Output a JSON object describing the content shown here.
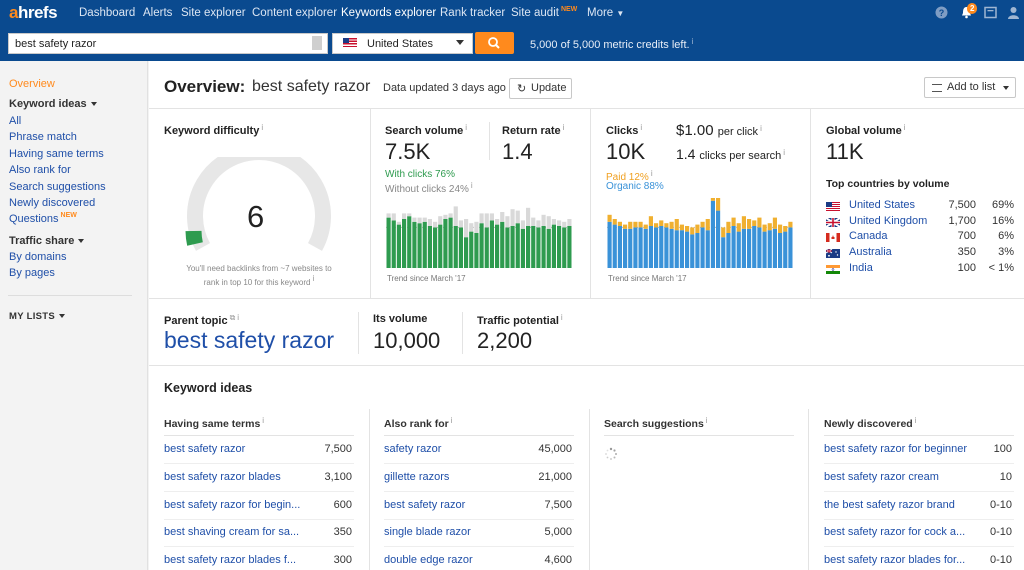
{
  "nav": {
    "logo_a": "a",
    "logo_rest": "hrefs",
    "items": [
      "Dashboard",
      "Alerts",
      "Site explorer",
      "Content explorer",
      "Keywords explorer",
      "Rank tracker",
      "Site audit",
      "More"
    ],
    "new_badge": "NEW",
    "notif_count": "2",
    "icons": [
      "help-icon",
      "bell-icon",
      "chat-icon",
      "user-icon"
    ]
  },
  "search": {
    "query": "best safety razor",
    "country": "United States",
    "credits": "5,000 of 5,000 metric credits left."
  },
  "sidebar": {
    "overview": "Overview",
    "keyword_ideas": "Keyword ideas",
    "ideas_links": [
      "All",
      "Phrase match",
      "Having same terms",
      "Also rank for",
      "Search suggestions",
      "Newly discovered",
      "Questions"
    ],
    "new_label": "NEW",
    "traffic_share": "Traffic share",
    "traffic_links": [
      "By domains",
      "By pages"
    ],
    "my_lists": "MY LISTS"
  },
  "overview": {
    "title": "Overview:",
    "keyword": "best safety razor",
    "updated": "Data updated 3 days ago",
    "update_btn": "Update",
    "add_to_list": "Add to list"
  },
  "kd": {
    "label": "Keyword difficulty",
    "value": "6",
    "note": "You'll need backlinks from ~7 websites to rank in top 10 for this keyword",
    "colors": {
      "fill": "#2e9b4f",
      "track": "#e7e7e7"
    }
  },
  "volume": {
    "label": "Search volume",
    "value": "7.5K",
    "with_clicks": "With clicks 76%",
    "without_clicks": "Without clicks 24%",
    "return_label": "Return rate",
    "return_value": "1.4",
    "trend": "Trend since March '17"
  },
  "clicks": {
    "label": "Clicks",
    "value": "10K",
    "cpc": "$1.00",
    "cpc_suffix": "per click",
    "cps": "1.4",
    "cps_suffix": "clicks per search",
    "paid": "Paid 12%",
    "organic": "Organic 88%",
    "trend": "Trend since March '17"
  },
  "global": {
    "label": "Global volume",
    "value": "11K",
    "top_label": "Top countries by volume",
    "countries": [
      {
        "name": "United States",
        "volume": "7,500",
        "share": "69%"
      },
      {
        "name": "United Kingdom",
        "volume": "1,700",
        "share": "16%"
      },
      {
        "name": "Canada",
        "volume": "700",
        "share": "6%"
      },
      {
        "name": "Australia",
        "volume": "350",
        "share": "3%"
      },
      {
        "name": "India",
        "volume": "100",
        "share": "< 1%"
      }
    ]
  },
  "parent": {
    "label": "Parent topic",
    "topic": "best safety razor",
    "its_volume_label": "Its volume",
    "its_volume": "10,000",
    "traffic_label": "Traffic potential",
    "traffic": "2,200"
  },
  "ideas": {
    "title": "Keyword ideas",
    "columns": [
      {
        "head": "Having same terms",
        "rows": [
          {
            "kw": "best safety razor",
            "n": "7,500"
          },
          {
            "kw": "best safety razor blades",
            "n": "3,100"
          },
          {
            "kw": "best safety razor for begin...",
            "n": "600"
          },
          {
            "kw": "best shaving cream for sa...",
            "n": "350"
          },
          {
            "kw": "best safety razor blades f...",
            "n": "300"
          }
        ]
      },
      {
        "head": "Also rank for",
        "rows": [
          {
            "kw": "safety razor",
            "n": "45,000"
          },
          {
            "kw": "gillette razors",
            "n": "21,000"
          },
          {
            "kw": "best safety razor",
            "n": "7,500"
          },
          {
            "kw": "single blade razor",
            "n": "5,000"
          },
          {
            "kw": "double edge razor",
            "n": "4,600"
          }
        ]
      },
      {
        "head": "Search suggestions",
        "rows": []
      },
      {
        "head": "Newly discovered",
        "rows": [
          {
            "kw": "best safety razor for beginner",
            "n": "100"
          },
          {
            "kw": "best safety razor cream",
            "n": "10"
          },
          {
            "kw": "the best safety razor brand",
            "n": "0-10"
          },
          {
            "kw": "best safety razor for cock a...",
            "n": "0-10"
          },
          {
            "kw": "best safety razor blades for...",
            "n": "0-10"
          }
        ]
      }
    ]
  },
  "chart_data": [
    {
      "type": "bar",
      "name": "search-volume-trend",
      "series": [
        {
          "name": "With clicks",
          "values": [
            72,
            68,
            62,
            70,
            74,
            66,
            64,
            66,
            60,
            58,
            62,
            70,
            72,
            60,
            58,
            44,
            52,
            50,
            64,
            58,
            68,
            62,
            66,
            58,
            60,
            64,
            56,
            60,
            60,
            58,
            60,
            56,
            62,
            60,
            58,
            60
          ]
        },
        {
          "name": "Without clicks",
          "values": [
            6,
            10,
            4,
            8,
            4,
            6,
            8,
            6,
            10,
            8,
            12,
            6,
            6,
            28,
            10,
            26,
            12,
            16,
            14,
            20,
            10,
            8,
            14,
            16,
            24,
            18,
            12,
            26,
            12,
            10,
            16,
            18,
            8,
            8,
            8,
            10
          ]
        }
      ],
      "colors": {
        "with": "#2e9b4f",
        "without": "#d9d9d9"
      }
    },
    {
      "type": "bar",
      "name": "clicks-trend",
      "series": [
        {
          "name": "Organic",
          "values": [
            66,
            62,
            60,
            56,
            56,
            58,
            58,
            56,
            60,
            58,
            60,
            58,
            56,
            54,
            54,
            52,
            48,
            50,
            58,
            54,
            96,
            82,
            44,
            50,
            60,
            52,
            56,
            56,
            60,
            58,
            52,
            54,
            56,
            50,
            52,
            58
          ]
        },
        {
          "name": "Paid",
          "values": [
            10,
            8,
            6,
            6,
            10,
            8,
            8,
            6,
            14,
            6,
            8,
            6,
            10,
            16,
            8,
            8,
            10,
            12,
            8,
            16,
            14,
            22,
            14,
            16,
            12,
            12,
            18,
            14,
            8,
            14,
            10,
            10,
            16,
            12,
            8,
            8
          ]
        }
      ],
      "colors": {
        "organic": "#3a92d8",
        "paid": "#f0b030"
      }
    }
  ]
}
